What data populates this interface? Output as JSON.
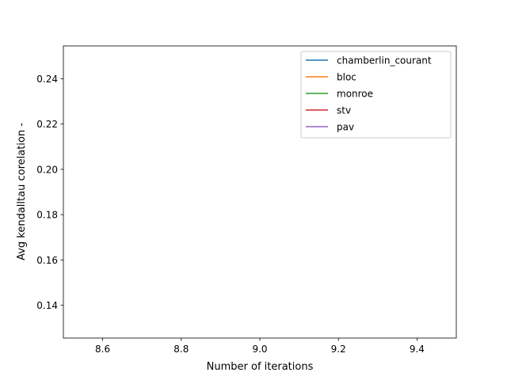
{
  "chart_data": {
    "type": "line",
    "title": "",
    "xlabel": "Number of iterations",
    "ylabel": "Avg kendalltau corelation -",
    "xlim": [
      8.5,
      9.5
    ],
    "ylim": [
      0.1255,
      0.2545
    ],
    "xticks": [
      "8.6",
      "8.8",
      "9.0",
      "9.2",
      "9.4"
    ],
    "yticks": [
      "0.14",
      "0.16",
      "0.18",
      "0.20",
      "0.22",
      "0.24"
    ],
    "grid": false,
    "legend_position": "top-right",
    "series": [
      {
        "name": "chamberlin_courant",
        "color": "#1f77b4",
        "x": [],
        "y": []
      },
      {
        "name": "bloc",
        "color": "#ff7f0e",
        "x": [],
        "y": []
      },
      {
        "name": "monroe",
        "color": "#2ca02c",
        "x": [],
        "y": []
      },
      {
        "name": "stv",
        "color": "#d62728",
        "x": [],
        "y": []
      },
      {
        "name": "pav",
        "color": "#9467bd",
        "x": [],
        "y": []
      }
    ]
  }
}
